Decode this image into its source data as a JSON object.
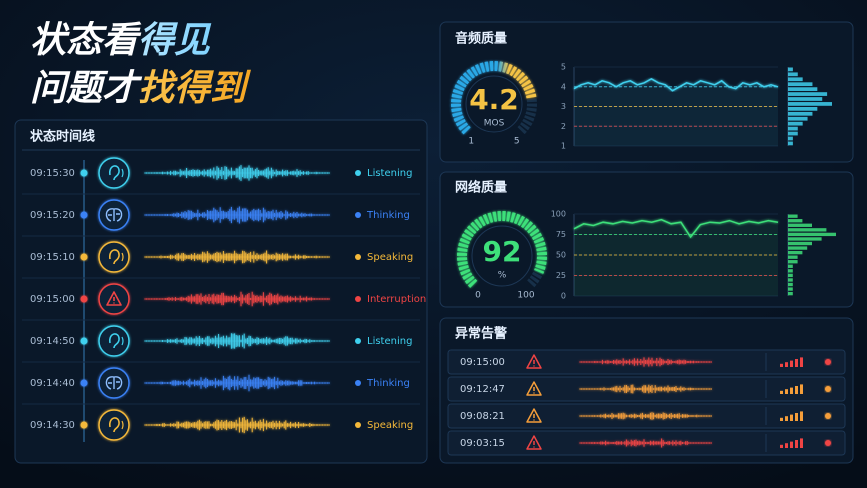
{
  "header": {
    "line1": [
      "状态看",
      "得见"
    ],
    "line2": [
      "问题才",
      "找得到"
    ]
  },
  "timeline": {
    "title": "状态时间线",
    "items": [
      {
        "time": "09:15:30",
        "status": "Listening",
        "color": "#3fd0ee"
      },
      {
        "time": "09:15:20",
        "status": "Thinking",
        "color": "#3b82f6"
      },
      {
        "time": "09:15:10",
        "status": "Speaking",
        "color": "#f5b93a"
      },
      {
        "time": "09:15:00",
        "status": "Interruption",
        "color": "#ef4444"
      },
      {
        "time": "09:14:50",
        "status": "Listening",
        "color": "#3fd0ee"
      },
      {
        "time": "09:14:40",
        "status": "Thinking",
        "color": "#3b82f6"
      },
      {
        "time": "09:14:30",
        "status": "Speaking",
        "color": "#f5b93a"
      }
    ]
  },
  "audio_quality": {
    "title": "音频质量",
    "gauge": {
      "value": 4.2,
      "unit": "MOS",
      "min": 1,
      "max": 5,
      "color": "#f5c344"
    },
    "chart": {
      "type": "line",
      "ylim": [
        1,
        5
      ],
      "yticks": [
        1,
        2,
        3,
        4,
        5
      ],
      "color": "#3fd0ee",
      "values": [
        3.9,
        4.1,
        4.2,
        4.1,
        4.3,
        4.2,
        4.0,
        4.2,
        4.3,
        4.1,
        4.2,
        4.4,
        4.2,
        4.1,
        3.8,
        4.0,
        4.2,
        4.1,
        4.3,
        4.2,
        4.1,
        4.3,
        4.0,
        3.9,
        4.2,
        4.1,
        4.2,
        4.0,
        4.1,
        4.0
      ],
      "reference_lines": [
        {
          "value": 4,
          "color": "#3fd0ee"
        },
        {
          "value": 3,
          "color": "#f5b93a"
        },
        {
          "value": 2,
          "color": "#ef4444"
        }
      ],
      "distribution": [
        1,
        2,
        3,
        5,
        6,
        8,
        7,
        9,
        6,
        5,
        4,
        3,
        2,
        2,
        1,
        1
      ]
    }
  },
  "network_quality": {
    "title": "网络质量",
    "gauge": {
      "value": 92,
      "unit": "%",
      "min": 0,
      "max": 100,
      "color": "#3ee07a"
    },
    "chart": {
      "type": "line",
      "ylim": [
        0,
        100
      ],
      "yticks": [
        0,
        25,
        50,
        75,
        100
      ],
      "color": "#3ee07a",
      "values": [
        82,
        88,
        86,
        90,
        88,
        91,
        89,
        92,
        90,
        93,
        88,
        90,
        72,
        87,
        90,
        89,
        92,
        88,
        91,
        89,
        92,
        90
      ],
      "reference_lines": [
        {
          "value": 75,
          "color": "#3ee07a"
        },
        {
          "value": 50,
          "color": "#f5b93a"
        },
        {
          "value": 25,
          "color": "#ef4444"
        }
      ],
      "distribution": [
        2,
        3,
        5,
        8,
        10,
        7,
        5,
        4,
        3,
        2,
        2,
        1,
        1,
        1,
        1,
        1,
        1,
        1
      ]
    }
  },
  "alerts": {
    "title": "异常告警",
    "items": [
      {
        "time": "09:15:00",
        "color": "#ef4444"
      },
      {
        "time": "09:12:47",
        "color": "#f59e3a"
      },
      {
        "time": "09:08:21",
        "color": "#f59e3a"
      },
      {
        "time": "09:03:15",
        "color": "#ef4444"
      }
    ]
  }
}
